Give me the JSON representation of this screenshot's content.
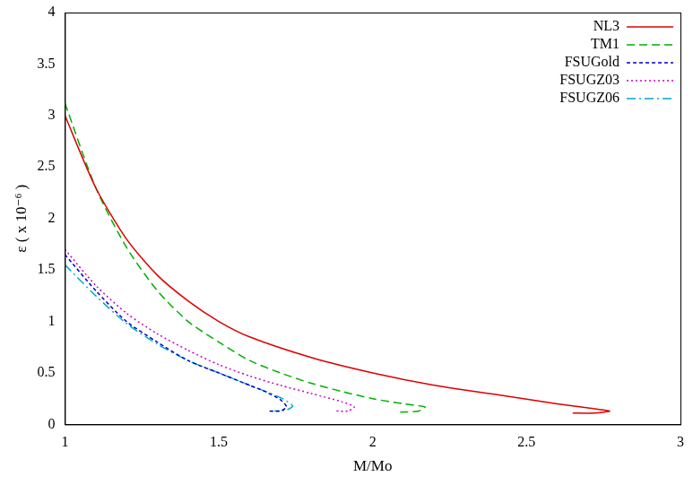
{
  "chart_data": {
    "type": "line",
    "x_label": "M/Mo",
    "y_label": "ε ( x 10⁻⁶ )",
    "xlim": [
      1,
      3
    ],
    "xticks": [
      1,
      1.5,
      2,
      2.5,
      3
    ],
    "ylim": [
      0,
      4
    ],
    "yticks": [
      0,
      0.5,
      1,
      1.5,
      2,
      2.5,
      3,
      3.5,
      4
    ],
    "grid": false,
    "legend": "top right",
    "series": [
      {
        "name": "NL3",
        "color": "#dd0000",
        "line_style": "solid",
        "x": [
          1,
          1.1,
          1.2,
          1.3,
          1.4,
          1.5,
          1.6,
          1.8,
          2.0,
          2.2,
          2.4,
          2.6,
          2.7,
          2.77,
          2.72,
          2.65
        ],
        "values": [
          3.0,
          2.3,
          1.8,
          1.45,
          1.2,
          1.0,
          0.85,
          0.65,
          0.5,
          0.38,
          0.29,
          0.2,
          0.16,
          0.13,
          0.11,
          0.11
        ]
      },
      {
        "name": "TM1",
        "color": "#00b000",
        "line_style": "dashed",
        "x": [
          1,
          1.1,
          1.2,
          1.3,
          1.4,
          1.5,
          1.6,
          1.7,
          1.8,
          1.9,
          2.0,
          2.1,
          2.17,
          2.15,
          2.1,
          2.08
        ],
        "values": [
          3.12,
          2.3,
          1.72,
          1.3,
          1.0,
          0.8,
          0.62,
          0.5,
          0.4,
          0.32,
          0.25,
          0.2,
          0.17,
          0.13,
          0.12,
          0.12
        ]
      },
      {
        "name": "FSUGold",
        "color": "#0000cc",
        "line_style": "short-dashed",
        "x": [
          1,
          1.1,
          1.2,
          1.3,
          1.4,
          1.5,
          1.6,
          1.65,
          1.7,
          1.72,
          1.7,
          1.66
        ],
        "values": [
          1.65,
          1.3,
          1.0,
          0.8,
          0.62,
          0.5,
          0.38,
          0.32,
          0.24,
          0.17,
          0.13,
          0.13
        ]
      },
      {
        "name": "FSUGZ03",
        "color": "#cc00cc",
        "line_style": "dotted",
        "x": [
          1,
          1.1,
          1.2,
          1.3,
          1.4,
          1.5,
          1.6,
          1.7,
          1.8,
          1.9,
          1.94,
          1.92,
          1.88
        ],
        "values": [
          1.7,
          1.35,
          1.08,
          0.88,
          0.72,
          0.58,
          0.47,
          0.38,
          0.3,
          0.22,
          0.17,
          0.13,
          0.13
        ]
      },
      {
        "name": "FSUGZ06",
        "color": "#00aacc",
        "line_style": "dashdot",
        "x": [
          1,
          1.1,
          1.2,
          1.3,
          1.4,
          1.5,
          1.6,
          1.7,
          1.74,
          1.72,
          1.68
        ],
        "values": [
          1.55,
          1.25,
          0.98,
          0.78,
          0.62,
          0.5,
          0.38,
          0.26,
          0.18,
          0.14,
          0.13
        ]
      }
    ]
  }
}
